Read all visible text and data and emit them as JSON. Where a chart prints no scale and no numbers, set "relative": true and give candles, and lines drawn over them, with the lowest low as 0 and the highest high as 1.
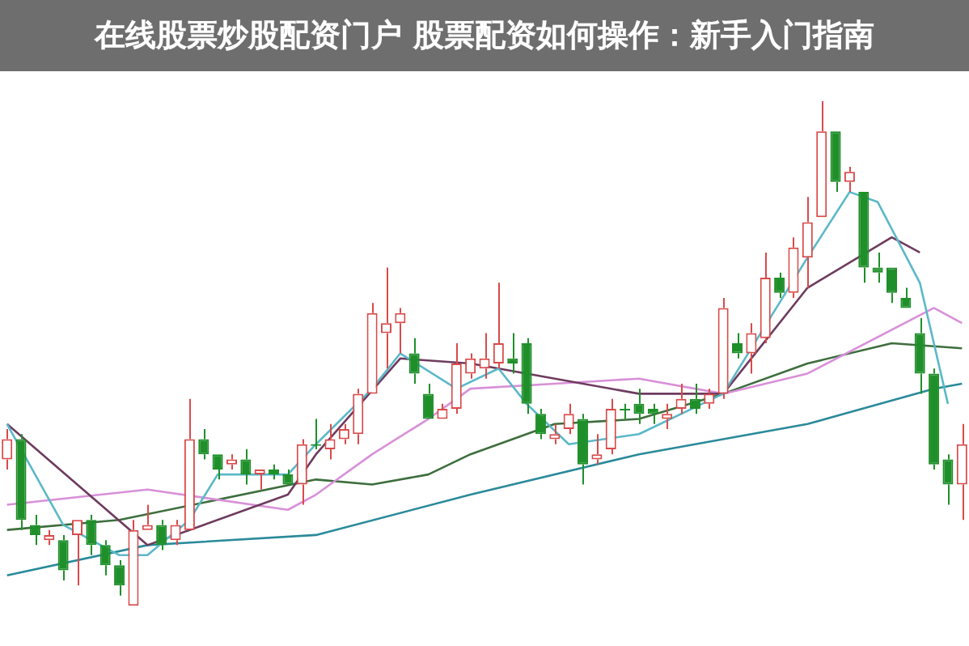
{
  "chart_data": {
    "type": "candlestick",
    "title": "在线股票炒股配资门户 股票配资如何操作：新手入门指南",
    "relative": true,
    "legend": false,
    "categories": [
      null,
      null,
      null,
      null,
      null,
      null,
      null,
      null,
      null,
      null,
      null,
      null,
      null,
      null,
      null,
      null,
      null,
      null,
      null,
      null,
      null,
      null,
      null,
      null,
      null,
      null,
      null,
      null,
      null,
      null,
      null,
      null,
      null,
      null,
      null,
      null,
      null,
      null,
      null,
      null,
      null,
      null,
      null,
      null,
      null,
      null,
      null,
      null,
      null,
      null,
      null,
      null,
      null,
      null,
      null,
      null,
      null,
      null,
      null,
      null,
      null,
      null,
      null,
      null,
      null,
      null,
      null,
      null,
      null
    ],
    "ohlc": [
      [
        0.29,
        0.35,
        0.27,
        0.33
      ],
      [
        0.33,
        0.34,
        0.15,
        0.17
      ],
      [
        0.16,
        0.18,
        0.12,
        0.14
      ],
      [
        0.13,
        0.15,
        0.12,
        0.14
      ],
      [
        0.13,
        0.14,
        0.05,
        0.07
      ],
      [
        0.14,
        0.17,
        0.04,
        0.17
      ],
      [
        0.17,
        0.18,
        0.1,
        0.12
      ],
      [
        0.12,
        0.13,
        0.06,
        0.08
      ],
      [
        0.08,
        0.09,
        0.02,
        0.04
      ],
      [
        0,
        0.17,
        0,
        0.15
      ],
      [
        0.15,
        0.2,
        0.15,
        0.16
      ],
      [
        0.16,
        0.17,
        0.11,
        0.12
      ],
      [
        0.13,
        0.17,
        0.12,
        0.16
      ],
      [
        0.15,
        0.41,
        0.15,
        0.33
      ],
      [
        0.33,
        0.35,
        0.29,
        0.3
      ],
      [
        0.3,
        0.3,
        0.25,
        0.27
      ],
      [
        0.28,
        0.3,
        0.27,
        0.29
      ],
      [
        0.29,
        0.31,
        0.24,
        0.26
      ],
      [
        0.26,
        0.27,
        0.23,
        0.27
      ],
      [
        0.27,
        0.28,
        0.25,
        0.26
      ],
      [
        0.26,
        0.27,
        0.24,
        0.24
      ],
      [
        0.24,
        0.33,
        0.2,
        0.32
      ],
      [
        0.32,
        0.37,
        0.31,
        0.32
      ],
      [
        0.31,
        0.36,
        0.29,
        0.33
      ],
      [
        0.33,
        0.36,
        0.32,
        0.35
      ],
      [
        0.34,
        0.43,
        0.32,
        0.42
      ],
      [
        0.42,
        0.6,
        0.42,
        0.58
      ],
      [
        0.54,
        0.67,
        0.47,
        0.56
      ],
      [
        0.56,
        0.59,
        0.5,
        0.58
      ],
      [
        0.5,
        0.53,
        0.44,
        0.46
      ],
      [
        0.42,
        0.44,
        0.37,
        0.37
      ],
      [
        0.37,
        0.4,
        0.37,
        0.39
      ],
      [
        0.39,
        0.52,
        0.38,
        0.48
      ],
      [
        0.46,
        0.5,
        0.45,
        0.49
      ],
      [
        0.47,
        0.54,
        0.45,
        0.49
      ],
      [
        0.48,
        0.64,
        0.47,
        0.52
      ],
      [
        0.49,
        0.54,
        0.46,
        0.48
      ],
      [
        0.52,
        0.53,
        0.38,
        0.4
      ],
      [
        0.38,
        0.39,
        0.33,
        0.34
      ],
      [
        0.33,
        0.36,
        0.32,
        0.34
      ],
      [
        0.35,
        0.4,
        0.34,
        0.38
      ],
      [
        0.37,
        0.38,
        0.24,
        0.28
      ],
      [
        0.29,
        0.34,
        0.28,
        0.3
      ],
      [
        0.31,
        0.41,
        0.3,
        0.39
      ],
      [
        0.39,
        0.4,
        0.37,
        0.39
      ],
      [
        0.4,
        0.43,
        0.36,
        0.38
      ],
      [
        0.39,
        0.4,
        0.36,
        0.38
      ],
      [
        0.37,
        0.4,
        0.35,
        0.38
      ],
      [
        0.39,
        0.44,
        0.38,
        0.41
      ],
      [
        0.41,
        0.44,
        0.38,
        0.39
      ],
      [
        0.4,
        0.43,
        0.39,
        0.42
      ],
      [
        0.42,
        0.61,
        0.41,
        0.59
      ],
      [
        0.52,
        0.54,
        0.49,
        0.5
      ],
      [
        0.5,
        0.56,
        0.46,
        0.54
      ],
      [
        0.53,
        0.7,
        0.52,
        0.65
      ],
      [
        0.65,
        0.66,
        0.61,
        0.62
      ],
      [
        0.62,
        0.73,
        0.61,
        0.71
      ],
      [
        0.69,
        0.81,
        0.63,
        0.76
      ],
      [
        0.77,
        1,
        0.77,
        0.94
      ],
      [
        0.94,
        0.94,
        0.82,
        0.84
      ],
      [
        0.84,
        0.87,
        0.82,
        0.86
      ],
      [
        0.82,
        0.82,
        0.64,
        0.67
      ],
      [
        0.67,
        0.7,
        0.64,
        0.66
      ],
      [
        0.67,
        0.67,
        0.6,
        0.62
      ],
      [
        0.61,
        0.63,
        0.59,
        0.59
      ],
      [
        0.54,
        0.57,
        0.42,
        0.46
      ],
      [
        0.46,
        0.47,
        0.27,
        0.28
      ],
      [
        0.29,
        0.3,
        0.2,
        0.24
      ],
      [
        0.24,
        0.36,
        0.17,
        0.32
      ]
    ],
    "colors": [
      "#d94a4a",
      "#1f8f2a",
      "#1f8f2a",
      "#d94a4a",
      "#1f8f2a",
      "#d94a4a",
      "#1f8f2a",
      "#1f8f2a",
      "#1f8f2a",
      "#d94a4a",
      "#d94a4a",
      "#1f8f2a",
      "#d94a4a",
      "#d94a4a",
      "#1f8f2a",
      "#1f8f2a",
      "#d94a4a",
      "#1f8f2a",
      "#d94a4a",
      "#1f8f2a",
      "#1f8f2a",
      "#d94a4a",
      "#1f8f2a",
      "#d94a4a",
      "#d94a4a",
      "#d94a4a",
      "#d94a4a",
      "#d94a4a",
      "#d94a4a",
      "#1f8f2a",
      "#1f8f2a",
      "#d94a4a",
      "#d94a4a",
      "#d94a4a",
      "#d94a4a",
      "#d94a4a",
      "#1f8f2a",
      "#1f8f2a",
      "#1f8f2a",
      "#d94a4a",
      "#d94a4a",
      "#1f8f2a",
      "#d94a4a",
      "#d94a4a",
      "#1f8f2a",
      "#1f8f2a",
      "#1f8f2a",
      "#d94a4a",
      "#d94a4a",
      "#1f8f2a",
      "#d94a4a",
      "#d94a4a",
      "#1f8f2a",
      "#d94a4a",
      "#d94a4a",
      "#1f8f2a",
      "#d94a4a",
      "#d94a4a",
      "#d94a4a",
      "#1f8f2a",
      "#d94a4a",
      "#1f8f2a",
      "#1f8f2a",
      "#1f8f2a",
      "#1f8f2a",
      "#1f8f2a",
      "#1f8f2a",
      "#1f8f2a",
      "#d94a4a"
    ],
    "series": [
      {
        "type": "line",
        "color": "#5bb8c8",
        "values": [
          0.36,
          null,
          null,
          null,
          0.16,
          null,
          null,
          null,
          0.1,
          null,
          0.1,
          null,
          null,
          0.17,
          null,
          0.26,
          null,
          null,
          null,
          null,
          0.26,
          null,
          0.32,
          null,
          null,
          null,
          0.43,
          null,
          0.5,
          null,
          null,
          null,
          0.43,
          null,
          null,
          0.47,
          null,
          0.4,
          null,
          null,
          0.32,
          null,
          null,
          null,
          null,
          0.34,
          null,
          null,
          null,
          null,
          null,
          0.42,
          null,
          null,
          null,
          null,
          null,
          0.69,
          null,
          null,
          0.82,
          null,
          0.8,
          null,
          null,
          0.64,
          null,
          0.4,
          null
        ]
      },
      {
        "type": "line",
        "color": "#6e3b5e",
        "values": [
          0.36,
          null,
          null,
          null,
          null,
          null,
          null,
          null,
          null,
          null,
          0.12,
          null,
          null,
          null,
          0.16,
          null,
          null,
          null,
          null,
          null,
          0.22,
          null,
          0.3,
          null,
          null,
          null,
          null,
          null,
          0.49,
          null,
          null,
          null,
          null,
          0.48,
          null,
          null,
          null,
          0.46,
          null,
          null,
          null,
          null,
          null,
          null,
          null,
          0.42,
          null,
          null,
          null,
          null,
          null,
          0.42,
          null,
          null,
          null,
          null,
          null,
          0.63,
          null,
          null,
          null,
          null,
          null,
          0.73,
          null,
          0.7,
          null,
          null,
          null
        ]
      },
      {
        "type": "line",
        "color": "#d890d8",
        "values": [
          0.2,
          null,
          null,
          null,
          null,
          null,
          null,
          null,
          null,
          null,
          0.23,
          null,
          null,
          null,
          null,
          null,
          null,
          null,
          null,
          null,
          0.19,
          null,
          0.22,
          null,
          null,
          null,
          0.3,
          null,
          null,
          null,
          0.37,
          null,
          null,
          0.43,
          null,
          null,
          null,
          null,
          null,
          0.44,
          null,
          null,
          null,
          null,
          null,
          0.45,
          null,
          null,
          null,
          null,
          null,
          0.42,
          null,
          null,
          null,
          null,
          null,
          0.46,
          null,
          null,
          null,
          null,
          null,
          null,
          null,
          null,
          0.59,
          null,
          0.56
        ]
      },
      {
        "type": "line",
        "color": "#3d6e3d",
        "values": [
          0.15,
          null,
          null,
          null,
          null,
          null,
          null,
          null,
          0.17,
          null,
          null,
          null,
          null,
          null,
          null,
          null,
          null,
          null,
          null,
          null,
          null,
          null,
          0.25,
          null,
          null,
          null,
          0.24,
          null,
          null,
          null,
          0.26,
          null,
          null,
          0.3,
          null,
          null,
          null,
          null,
          null,
          0.36,
          null,
          null,
          null,
          null,
          null,
          0.37,
          null,
          null,
          null,
          null,
          null,
          0.42,
          null,
          null,
          null,
          null,
          null,
          0.48,
          null,
          null,
          null,
          null,
          null,
          0.52,
          null,
          null,
          null,
          null,
          0.51
        ]
      },
      {
        "type": "line",
        "color": "#2a8a9a",
        "values": [
          0.06,
          null,
          null,
          null,
          null,
          null,
          null,
          null,
          null,
          null,
          0.12,
          null,
          null,
          null,
          null,
          null,
          null,
          null,
          null,
          null,
          null,
          null,
          0.14,
          null,
          null,
          null,
          null,
          null,
          null,
          null,
          null,
          null,
          null,
          0.22,
          null,
          null,
          null,
          null,
          null,
          null,
          null,
          null,
          null,
          null,
          null,
          0.3,
          null,
          null,
          null,
          null,
          null,
          null,
          null,
          null,
          null,
          null,
          null,
          0.36,
          null,
          null,
          null,
          null,
          null,
          null,
          null,
          null,
          0.43,
          null,
          0.44
        ]
      }
    ]
  }
}
